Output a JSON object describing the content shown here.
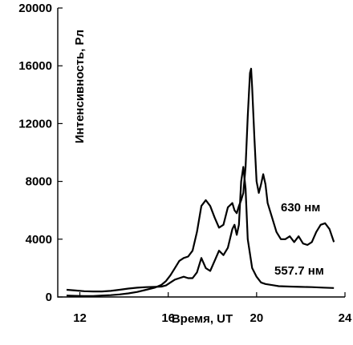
{
  "chart_data": {
    "type": "line",
    "xlabel": "Время, UT",
    "ylabel": "Интенсивность, Рл",
    "xlim": [
      11,
      24
    ],
    "ylim": [
      0,
      20000
    ],
    "xticks": [
      12,
      16,
      20,
      24
    ],
    "yticks": [
      0,
      4000,
      8000,
      12000,
      16000,
      20000
    ],
    "xtick_labels": [
      "12",
      "16",
      "20",
      "24"
    ],
    "ytick_labels": [
      "0",
      "4000",
      "8000",
      "12000",
      "16000",
      "20000"
    ],
    "grid": false,
    "legend": "inline-labels",
    "series": [
      {
        "name": "630 нм",
        "x": [
          11.4,
          11.8,
          12.2,
          12.6,
          13.0,
          13.4,
          13.8,
          14.2,
          14.6,
          15.0,
          15.4,
          15.7,
          15.9,
          16.1,
          16.3,
          16.5,
          16.7,
          16.9,
          17.1,
          17.3,
          17.5,
          17.7,
          17.9,
          18.1,
          18.3,
          18.5,
          18.7,
          18.9,
          19.0,
          19.1,
          19.2,
          19.3,
          19.4,
          19.5,
          19.6,
          19.7,
          19.75,
          19.8,
          19.9,
          20.0,
          20.1,
          20.2,
          20.3,
          20.4,
          20.5,
          20.7,
          20.9,
          21.1,
          21.3,
          21.5,
          21.7,
          21.9,
          22.1,
          22.3,
          22.5,
          22.7,
          22.9,
          23.1,
          23.3,
          23.5
        ],
        "values": [
          100,
          80,
          60,
          60,
          100,
          130,
          180,
          250,
          350,
          500,
          650,
          850,
          1100,
          1500,
          2000,
          2500,
          2700,
          2800,
          3200,
          4500,
          6300,
          6700,
          6300,
          5500,
          4800,
          5000,
          6200,
          6500,
          6000,
          5800,
          6300,
          6700,
          7200,
          9000,
          12500,
          15500,
          15800,
          14500,
          11000,
          8000,
          7200,
          7800,
          8500,
          7800,
          6500,
          5500,
          4500,
          4000,
          4000,
          4200,
          3800,
          4200,
          3700,
          3600,
          3800,
          4500,
          5000,
          5100,
          4700,
          3800
        ]
      },
      {
        "name": "557.7 нм",
        "x": [
          11.4,
          11.8,
          12.2,
          12.6,
          13.0,
          13.4,
          13.8,
          14.2,
          14.6,
          15.0,
          15.4,
          15.7,
          15.9,
          16.1,
          16.3,
          16.5,
          16.7,
          16.9,
          17.1,
          17.3,
          17.5,
          17.7,
          17.9,
          18.1,
          18.3,
          18.5,
          18.7,
          18.9,
          19.0,
          19.1,
          19.2,
          19.3,
          19.4,
          19.5,
          19.6,
          19.8,
          20.0,
          20.2,
          20.4,
          20.6,
          20.8,
          21.0,
          21.5,
          22.0,
          22.5,
          23.0,
          23.5
        ],
        "values": [
          500,
          450,
          400,
          380,
          380,
          420,
          500,
          580,
          640,
          680,
          700,
          720,
          800,
          1000,
          1200,
          1300,
          1400,
          1300,
          1300,
          1700,
          2700,
          2000,
          1800,
          2500,
          3200,
          2900,
          3400,
          4700,
          5000,
          4300,
          5000,
          8000,
          9000,
          7500,
          4000,
          2000,
          1400,
          1000,
          900,
          850,
          800,
          750,
          720,
          700,
          680,
          650,
          620
        ]
      }
    ]
  }
}
